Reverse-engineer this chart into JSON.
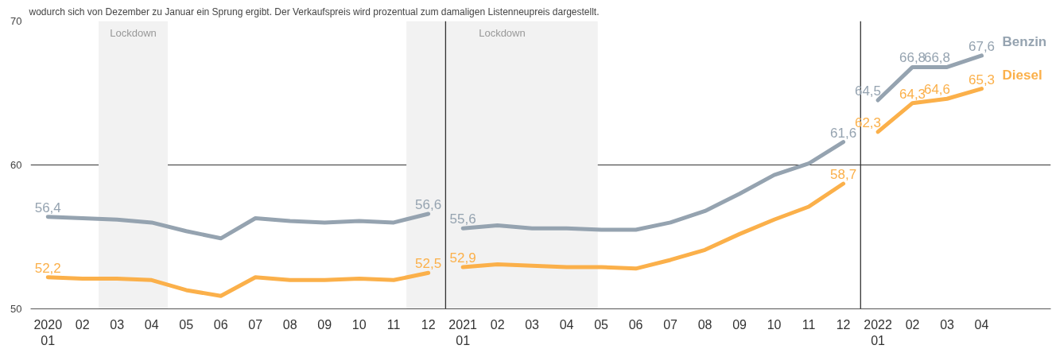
{
  "chart_data": {
    "type": "line",
    "subtitle": "wodurch sich von Dezember zu Januar ein Sprung ergibt. Der Verkaufspreis wird prozentual zum damaligen Listenneupreis dargestellt.",
    "xlim": [
      "2019-12-16",
      "2022-06-01"
    ],
    "xticks": [
      {
        "value": "2020-01",
        "label": "2020\n01"
      },
      {
        "value": "2020-02",
        "label": "02"
      },
      {
        "value": "2020-03",
        "label": "03"
      },
      {
        "value": "2020-04",
        "label": "04"
      },
      {
        "value": "2020-05",
        "label": "05"
      },
      {
        "value": "2020-06",
        "label": "06"
      },
      {
        "value": "2020-07",
        "label": "07"
      },
      {
        "value": "2020-08",
        "label": "08"
      },
      {
        "value": "2020-09",
        "label": "09"
      },
      {
        "value": "2020-10",
        "label": "10"
      },
      {
        "value": "2020-11",
        "label": "11"
      },
      {
        "value": "2020-12",
        "label": "12"
      },
      {
        "value": "2021-01",
        "label": "2021\n01"
      },
      {
        "value": "2021-02",
        "label": "02"
      },
      {
        "value": "2021-03",
        "label": "03"
      },
      {
        "value": "2021-04",
        "label": "04"
      },
      {
        "value": "2021-05",
        "label": "05"
      },
      {
        "value": "2021-06",
        "label": "06"
      },
      {
        "value": "2021-07",
        "label": "07"
      },
      {
        "value": "2021-08",
        "label": "08"
      },
      {
        "value": "2021-09",
        "label": "09"
      },
      {
        "value": "2021-10",
        "label": "10"
      },
      {
        "value": "2021-11",
        "label": "11"
      },
      {
        "value": "2021-12",
        "label": "12"
      },
      {
        "value": "2022-01",
        "label": "2022\n01"
      },
      {
        "value": "2022-02",
        "label": "02"
      },
      {
        "value": "2022-03",
        "label": "03"
      },
      {
        "value": "2022-04",
        "label": "04"
      }
    ],
    "ylim": [
      50,
      70
    ],
    "yticks": [
      50,
      60,
      70
    ],
    "grid": "y",
    "line_style": "solid",
    "bands": [
      {
        "axis": "x",
        "from": "2020-02-15",
        "to": "2020-04-15",
        "label": "Lockdown",
        "color": "#f2f2f2"
      },
      {
        "axis": "x",
        "from": "2020-11-12",
        "to": "2021-04-28",
        "label": "Lockdown",
        "color": "#f2f2f2"
      }
    ],
    "ref_lines": [
      {
        "axis": "x",
        "value": "2020-12-16",
        "color": "#333333"
      },
      {
        "axis": "x",
        "value": "2021-12-16",
        "color": "#333333"
      }
    ],
    "series": [
      {
        "color": "#95a3b0",
        "x": [
          "2020-01",
          "2020-02",
          "2020-03",
          "2020-04",
          "2020-05",
          "2020-06",
          "2020-07",
          "2020-08",
          "2020-09",
          "2020-10",
          "2020-11",
          "2020-12"
        ],
        "values": [
          56.4,
          56.3,
          56.2,
          56.0,
          55.4,
          54.9,
          56.3,
          56.1,
          56.0,
          56.1,
          56.0,
          56.6
        ],
        "value_labels": [
          "56,4",
          null,
          null,
          null,
          null,
          null,
          null,
          null,
          null,
          null,
          null,
          "56,6"
        ]
      },
      {
        "color": "#fbb04a",
        "x": [
          "2020-01",
          "2020-02",
          "2020-03",
          "2020-04",
          "2020-05",
          "2020-06",
          "2020-07",
          "2020-08",
          "2020-09",
          "2020-10",
          "2020-11",
          "2020-12"
        ],
        "values": [
          52.2,
          52.1,
          52.1,
          52.0,
          51.3,
          50.9,
          52.2,
          52.0,
          52.0,
          52.1,
          52.0,
          52.5
        ],
        "value_labels": [
          "52,2",
          null,
          null,
          null,
          null,
          null,
          null,
          null,
          null,
          null,
          null,
          "52,5"
        ]
      },
      {
        "color": "#95a3b0",
        "x": [
          "2021-01",
          "2021-02",
          "2021-03",
          "2021-04",
          "2021-05",
          "2021-06",
          "2021-07",
          "2021-08",
          "2021-09",
          "2021-10",
          "2021-11",
          "2021-12"
        ],
        "values": [
          55.6,
          55.8,
          55.6,
          55.6,
          55.5,
          55.5,
          56.0,
          56.8,
          58.0,
          59.3,
          60.1,
          61.6
        ],
        "value_labels": [
          "55,6",
          null,
          null,
          null,
          null,
          null,
          null,
          null,
          null,
          null,
          null,
          "61,6"
        ]
      },
      {
        "color": "#fbb04a",
        "x": [
          "2021-01",
          "2021-02",
          "2021-03",
          "2021-04",
          "2021-05",
          "2021-06",
          "2021-07",
          "2021-08",
          "2021-09",
          "2021-10",
          "2021-11",
          "2021-12"
        ],
        "values": [
          52.9,
          53.1,
          53.0,
          52.9,
          52.9,
          52.8,
          53.4,
          54.1,
          55.2,
          56.2,
          57.1,
          58.7
        ],
        "value_labels": [
          "52,9",
          null,
          null,
          null,
          null,
          null,
          null,
          null,
          null,
          null,
          null,
          "58,7"
        ]
      },
      {
        "name": "Benzin",
        "color": "#95a3b0",
        "x": [
          "2022-01",
          "2022-02",
          "2022-03",
          "2022-04"
        ],
        "values": [
          64.5,
          66.8,
          66.8,
          67.6
        ],
        "value_labels": [
          "64,5",
          "66,8",
          "66,8",
          "67,6"
        ]
      },
      {
        "name": "Diesel",
        "color": "#fbb04a",
        "x": [
          "2022-01",
          "2022-02",
          "2022-03",
          "2022-04"
        ],
        "values": [
          62.3,
          64.3,
          64.6,
          65.3
        ],
        "value_labels": [
          "62,3",
          "64,3",
          "64,6",
          "65,3"
        ]
      }
    ]
  }
}
